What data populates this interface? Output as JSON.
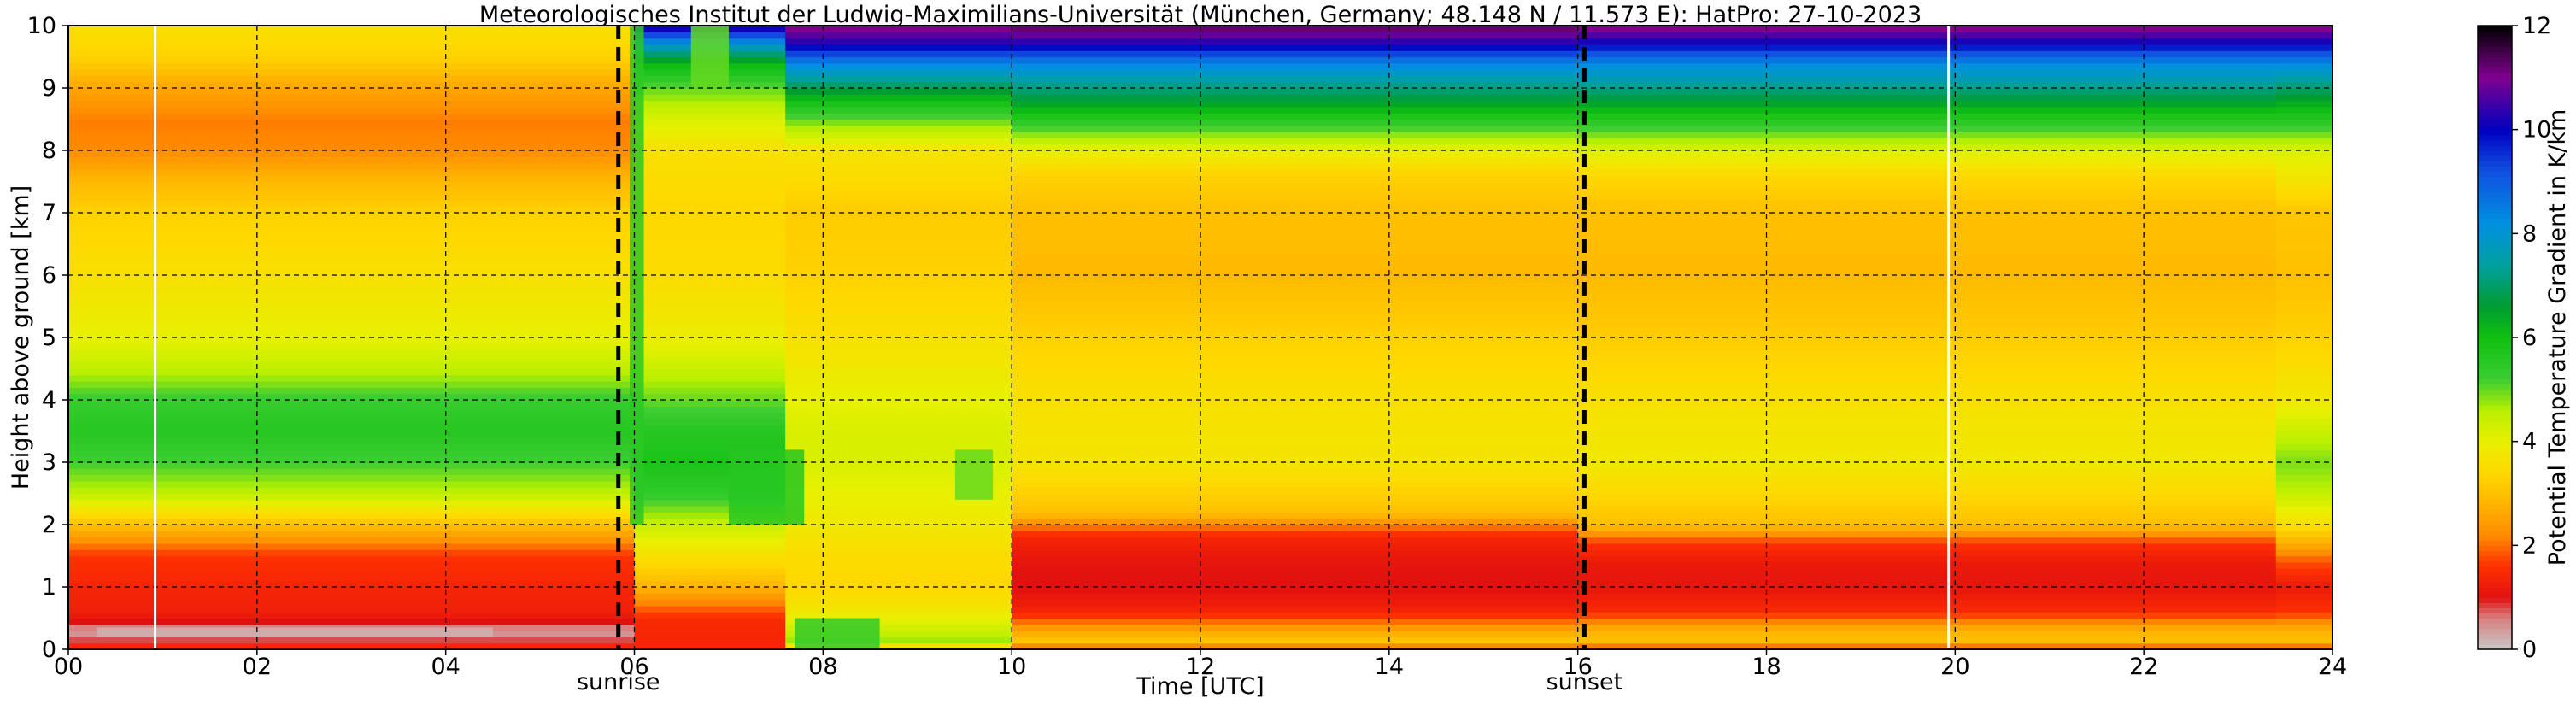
{
  "chart_data": {
    "type": "heatmap",
    "title": "Meteorologisches Institut der Ludwig-Maximilians-Universität (München, Germany; 48.148 N / 11.573 E):    HatPro: 27-10-2023",
    "xlabel": "Time [UTC]",
    "ylabel": "Height above ground [km]",
    "colorbar_label": "Potential Temperature Gradient in K/km",
    "xlim": [
      0,
      24
    ],
    "ylim": [
      0,
      10
    ],
    "clim": [
      0,
      12
    ],
    "x_ticks": [
      0,
      2,
      4,
      6,
      8,
      10,
      12,
      14,
      16,
      18,
      20,
      22,
      24
    ],
    "x_tick_labels": [
      "00",
      "02",
      "04",
      "06",
      "08",
      "10",
      "12",
      "14",
      "16",
      "18",
      "20",
      "22",
      "24"
    ],
    "y_ticks": [
      0,
      1,
      2,
      3,
      4,
      5,
      6,
      7,
      8,
      9,
      10
    ],
    "y_tick_labels": [
      "0",
      "1",
      "2",
      "3",
      "4",
      "5",
      "6",
      "7",
      "8",
      "9",
      "10"
    ],
    "colorbar_ticks": [
      0,
      2,
      4,
      6,
      8,
      10,
      12
    ],
    "colorbar_tick_labels": [
      "0",
      "2",
      "4",
      "6",
      "8",
      "10",
      "12"
    ],
    "grid": true,
    "markers": [
      {
        "label": "sunrise",
        "time": 5.83
      },
      {
        "label": "sunset",
        "time": 16.07
      }
    ],
    "white_lines": [
      0.92,
      19.93
    ],
    "colormap": [
      {
        "v": 0.0,
        "color": "#c8c8c8"
      },
      {
        "v": 0.6,
        "color": "#d98080"
      },
      {
        "v": 1.0,
        "color": "#e01010"
      },
      {
        "v": 1.6,
        "color": "#ff3000"
      },
      {
        "v": 2.2,
        "color": "#ff8c00"
      },
      {
        "v": 2.8,
        "color": "#ffb400"
      },
      {
        "v": 3.4,
        "color": "#ffd800"
      },
      {
        "v": 4.0,
        "color": "#e8f000"
      },
      {
        "v": 4.6,
        "color": "#b8f000"
      },
      {
        "v": 5.2,
        "color": "#3ccd32"
      },
      {
        "v": 6.0,
        "color": "#10c010"
      },
      {
        "v": 6.6,
        "color": "#009c30"
      },
      {
        "v": 7.4,
        "color": "#00a0a0"
      },
      {
        "v": 8.2,
        "color": "#0090e0"
      },
      {
        "v": 9.2,
        "color": "#1050e0"
      },
      {
        "v": 10.0,
        "color": "#0000c0"
      },
      {
        "v": 11.0,
        "color": "#800090"
      },
      {
        "v": 12.0,
        "color": "#000000"
      }
    ],
    "profiles": [
      {
        "time_start": 0,
        "time_end": 6,
        "heights": [
          0,
          0.1,
          0.2,
          0.3,
          0.4,
          0.6,
          1.0,
          1.5,
          2.0,
          2.5,
          3.0,
          3.5,
          4.0,
          4.5,
          5.0,
          6.0,
          7.0,
          7.5,
          8.0,
          8.5,
          9.0,
          9.5,
          10.0
        ],
        "values": [
          1.8,
          1.0,
          0.6,
          0.3,
          0.9,
          1.3,
          1.4,
          1.6,
          3.0,
          4.5,
          5.2,
          5.6,
          5.3,
          4.5,
          4.0,
          3.6,
          3.3,
          2.9,
          2.2,
          2.1,
          2.6,
          3.3,
          3.6
        ]
      },
      {
        "time_start": 6,
        "time_end": 7.6,
        "heights": [
          0,
          0.2,
          0.5,
          1.0,
          1.5,
          2.0,
          2.5,
          3.0,
          3.5,
          4.0,
          4.5,
          5.0,
          6.0,
          7.0,
          8.0,
          8.5,
          9.0,
          9.4,
          9.7,
          10.0
        ],
        "values": [
          1.4,
          1.4,
          1.5,
          2.8,
          3.6,
          4.4,
          5.4,
          5.8,
          5.6,
          5.0,
          4.4,
          3.9,
          3.5,
          3.4,
          3.6,
          4.2,
          5.0,
          6.2,
          8.0,
          10.5
        ]
      },
      {
        "time_start": 7.6,
        "time_end": 10,
        "heights": [
          0,
          0.1,
          0.3,
          0.6,
          1.0,
          1.5,
          2.0,
          3.0,
          3.5,
          4.0,
          5.0,
          6.0,
          7.0,
          8.0,
          8.5,
          8.8,
          9.1,
          9.4,
          9.7,
          10.0
        ],
        "values": [
          2.5,
          4.8,
          4.4,
          3.8,
          3.4,
          3.5,
          3.8,
          4.2,
          4.2,
          4.0,
          3.6,
          3.3,
          3.2,
          3.7,
          5.0,
          6.0,
          7.2,
          8.4,
          10.2,
          11.2
        ]
      },
      {
        "time_start": 10,
        "time_end": 16,
        "heights": [
          0,
          0.1,
          0.3,
          0.6,
          1.0,
          1.4,
          1.8,
          2.2,
          3.0,
          4.0,
          5.0,
          6.0,
          7.0,
          7.6,
          8.0,
          8.5,
          8.8,
          9.1,
          9.4,
          9.7,
          10.0
        ],
        "values": [
          1.2,
          3.2,
          2.6,
          1.4,
          1.0,
          1.1,
          1.4,
          3.0,
          3.7,
          3.6,
          3.3,
          2.9,
          3.0,
          3.3,
          4.0,
          5.6,
          6.6,
          7.4,
          8.4,
          10.2,
          11.4
        ]
      },
      {
        "time_start": 16,
        "time_end": 23.4,
        "heights": [
          0,
          0.1,
          0.3,
          0.6,
          1.0,
          1.4,
          1.7,
          2.0,
          3.0,
          4.0,
          5.0,
          6.0,
          7.0,
          7.6,
          8.0,
          8.5,
          8.8,
          9.1,
          9.4,
          9.7,
          10.0
        ],
        "values": [
          1.2,
          3.0,
          2.8,
          1.5,
          1.1,
          1.2,
          1.6,
          3.0,
          3.8,
          3.6,
          3.2,
          2.9,
          3.0,
          3.4,
          4.2,
          5.6,
          6.6,
          7.5,
          8.3,
          10.0,
          11.2
        ]
      },
      {
        "time_start": 23.4,
        "time_end": 24,
        "heights": [
          0,
          0.1,
          0.3,
          0.6,
          1.0,
          1.4,
          2.0,
          2.6,
          3.0,
          3.4,
          4.0,
          5.0,
          6.0,
          7.0,
          8.0,
          8.5,
          9.0,
          9.4,
          9.7,
          10.0
        ],
        "values": [
          1.2,
          3.0,
          2.8,
          1.6,
          1.2,
          1.8,
          3.6,
          4.6,
          4.9,
          4.5,
          3.8,
          3.3,
          3.0,
          3.1,
          4.2,
          5.6,
          7.0,
          8.3,
          10.0,
          11.2
        ]
      }
    ],
    "features": [
      {
        "t0": 5.95,
        "t1": 6.1,
        "z0": 2.0,
        "z1": 10.0,
        "value": 5.5
      },
      {
        "t0": 6.6,
        "t1": 7.0,
        "z0": 9.0,
        "z1": 10.0,
        "value": 5.0
      },
      {
        "t0": 7.0,
        "t1": 7.8,
        "z0": 2.0,
        "z1": 3.2,
        "value": 5.6
      },
      {
        "t0": 7.7,
        "t1": 8.6,
        "z0": 0.0,
        "z1": 0.5,
        "value": 5.4
      },
      {
        "t0": 9.4,
        "t1": 9.8,
        "z0": 2.4,
        "z1": 3.2,
        "value": 5.0
      },
      {
        "t0": 0.3,
        "t1": 4.5,
        "z0": 0.2,
        "z1": 0.35,
        "value": 0.2
      }
    ]
  }
}
